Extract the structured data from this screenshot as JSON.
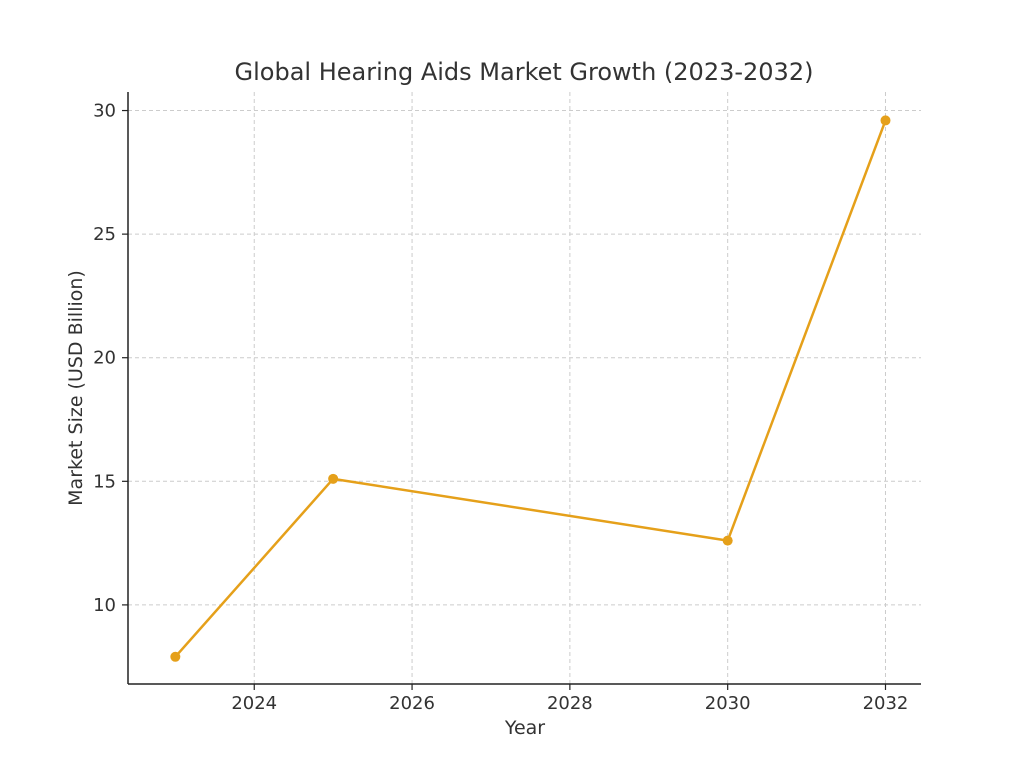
{
  "chart_data": {
    "type": "line",
    "title": "Global Hearing Aids Market Growth (2023-2032)",
    "xlabel": "Year",
    "ylabel": "Market Size (USD Billion)",
    "x": [
      2023,
      2025,
      2030,
      2032
    ],
    "series": [
      {
        "values": [
          7.9,
          15.1,
          12.6,
          29.6
        ],
        "color": "#e5a01a"
      }
    ],
    "xlim": [
      2022.4,
      2032.45
    ],
    "ylim": [
      6.8,
      30.75
    ],
    "xticks": [
      2024,
      2026,
      2028,
      2030,
      2032
    ],
    "yticks": [
      10,
      15,
      20,
      25,
      30
    ],
    "grid": true,
    "legend": "none"
  }
}
